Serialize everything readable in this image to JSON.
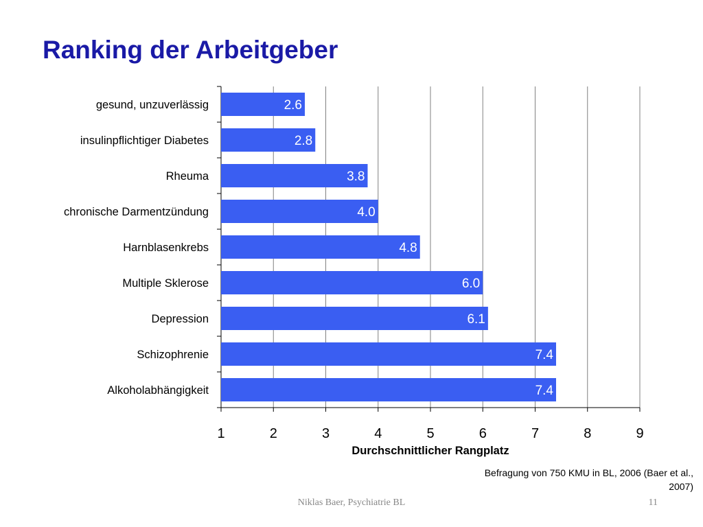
{
  "slide": {
    "title": "Ranking der Arbeitgeber",
    "source_note": "Befragung von 750 KMU in BL, 2006 (Baer et al., 2007)",
    "footer_author": "Niklas Baer, Psychiatrie BL",
    "page_number": "11"
  },
  "colors": {
    "title": "#1a1aa6",
    "bar": "#3a5ef2",
    "bar_label": "#ffffff",
    "grid": "#808080"
  },
  "chart_data": {
    "type": "bar",
    "orientation": "horizontal",
    "categories": [
      "gesund, unzuverlässig",
      "insulinpflichtiger Diabetes",
      "Rheuma",
      "chronische Darmentzündung",
      "Harnblasenkrebs",
      "Multiple Sklerose",
      "Depression",
      "Schizophrenie",
      "Alkoholabhängigkeit"
    ],
    "values": [
      2.6,
      2.8,
      3.8,
      4.0,
      4.8,
      6.0,
      6.1,
      7.4,
      7.4
    ],
    "value_labels": [
      "2.6",
      "2.8",
      "3.8",
      "4.0",
      "4.8",
      "6.0",
      "6.1",
      "7.4",
      "7.4"
    ],
    "xlabel": "Durchschnittlicher Rangplatz",
    "ylabel": "",
    "xlim": [
      1,
      9
    ],
    "xticks": [
      1,
      2,
      3,
      4,
      5,
      6,
      7,
      8,
      9
    ],
    "xtick_labels": [
      "1",
      "2",
      "3",
      "4",
      "5",
      "6",
      "7",
      "8",
      "9"
    ],
    "grid": "vertical"
  }
}
